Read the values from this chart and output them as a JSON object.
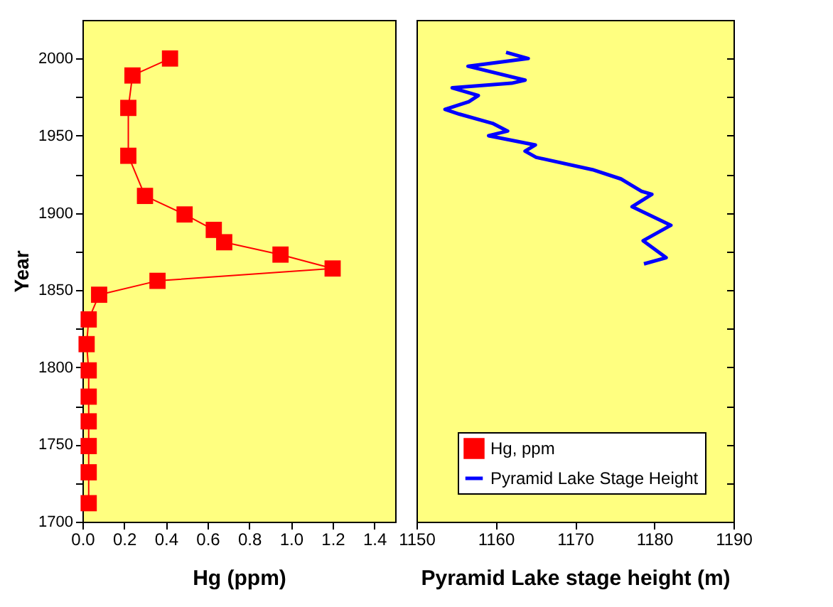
{
  "chart_data": [
    {
      "type": "line",
      "marker": "square",
      "xlabel": "Hg (ppm)",
      "ylabel": "Year",
      "xlim": [
        0,
        1.5
      ],
      "xticks": [
        {
          "value": 0,
          "label": "0.0"
        },
        {
          "value": 0.2,
          "label": "0.2"
        },
        {
          "value": 0.4,
          "label": "0.4"
        },
        {
          "value": 0.6,
          "label": "0.6"
        },
        {
          "value": 0.8,
          "label": "0.8"
        },
        {
          "value": 1.0,
          "label": "1.0"
        },
        {
          "value": 1.2,
          "label": "1.2"
        },
        {
          "value": 1.4,
          "label": "1.4"
        }
      ],
      "ylim": [
        1700,
        2025
      ],
      "yticks": [
        1700,
        {
          "value": 1725,
          "label": null
        },
        1750,
        {
          "value": 1775,
          "label": null
        },
        1800,
        {
          "value": 1825,
          "label": null
        },
        1850,
        {
          "value": 1875,
          "label": null
        },
        1900,
        {
          "value": 1925,
          "label": null
        },
        1950,
        {
          "value": 1975,
          "label": null
        },
        2000
      ],
      "series": [
        {
          "name": "Hg, ppm",
          "color": "#ff0000",
          "x": [
            0.42,
            0.24,
            0.22,
            0.22,
            0.3,
            0.49,
            0.63,
            0.68,
            0.95,
            1.2,
            0.36,
            0.08,
            0.03,
            0.02,
            0.03,
            0.03,
            0.03,
            0.03,
            0.03,
            0.03
          ],
          "values": [
            2000,
            1989,
            1968,
            1937,
            1911,
            1899,
            1889,
            1881,
            1873,
            1864,
            1856,
            1847,
            1831,
            1815,
            1798,
            1781,
            1765,
            1749,
            1732,
            1712
          ]
        }
      ]
    },
    {
      "type": "line",
      "marker": "none",
      "xlabel": "Pyramid Lake stage height (m)",
      "legend": "bottom right",
      "tick_labels": "x",
      "xlim": [
        1150,
        1190
      ],
      "xticks": [
        1150,
        1160,
        1170,
        1180,
        1190
      ],
      "ylim": [
        1700,
        2025
      ],
      "yticks": [
        1700,
        {
          "value": 1725,
          "label": null
        },
        1750,
        {
          "value": 1775,
          "label": null
        },
        1800,
        {
          "value": 1825,
          "label": null
        },
        1850,
        {
          "value": 1875,
          "label": null
        },
        1900,
        {
          "value": 1925,
          "label": null
        },
        1950,
        {
          "value": 1975,
          "label": null
        },
        2000
      ],
      "series": [
        {
          "name": "Pyramid Lake Stage Height",
          "color": "#0000ff",
          "x": [
            1161.3,
            1164.1,
            1156.5,
            1163.7,
            1162.0,
            1154.5,
            1157.8,
            1156.6,
            1153.6,
            1155.4,
            1159.6,
            1161.5,
            1159.1,
            1165.0,
            1163.7,
            1165.1,
            1172.2,
            1175.8,
            1178.4,
            1179.7,
            1177.2,
            1182.1,
            1178.6,
            1181.5,
            1178.7
          ],
          "values": [
            2004,
            2000,
            1995,
            1986,
            1984,
            1981,
            1976,
            1972,
            1967,
            1964,
            1958,
            1953,
            1950,
            1944,
            1940,
            1936,
            1928,
            1922,
            1914,
            1912,
            1904,
            1892,
            1882,
            1871,
            1867
          ]
        }
      ]
    }
  ]
}
